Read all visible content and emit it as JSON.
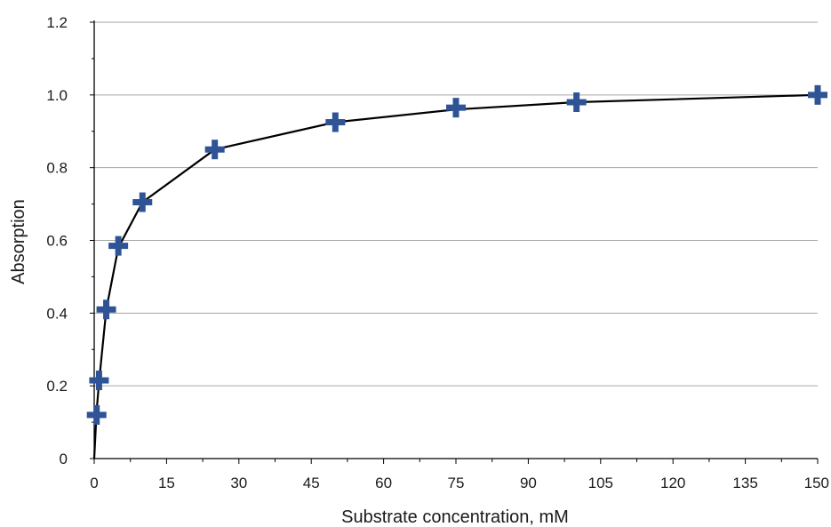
{
  "chart_data": {
    "type": "scatter",
    "title": "",
    "xlabel": "Substrate concentration, mM",
    "ylabel": "Absorption",
    "xlim": [
      0,
      150
    ],
    "ylim": [
      0,
      1.2
    ],
    "x_ticks": [
      0,
      15,
      30,
      45,
      60,
      75,
      90,
      105,
      120,
      135,
      150
    ],
    "x_tick_labels": [
      "0",
      "15",
      "30",
      "45",
      "60",
      "75",
      "90",
      "105",
      "120",
      "135",
      "150"
    ],
    "y_ticks": [
      0,
      0.2,
      0.4,
      0.6,
      0.8,
      1.0,
      1.2
    ],
    "y_tick_labels": [
      "0",
      "0.2",
      "0.4",
      "0.6",
      "0.8",
      "1.0",
      "1.2"
    ],
    "grid": "horizontal",
    "marker_color": "#2e5496",
    "line_color": "#000000",
    "grid_color": "#a6a6a6",
    "points": {
      "x": [
        0.5,
        1,
        2.5,
        5,
        10,
        25,
        50,
        75,
        100,
        150
      ],
      "y": [
        0.12,
        0.215,
        0.41,
        0.585,
        0.705,
        0.85,
        0.925,
        0.965,
        0.98,
        1.0
      ]
    },
    "fit_curve": {
      "x": [
        0,
        0.5,
        1,
        2.5,
        5,
        10,
        25,
        50,
        75,
        100,
        150
      ],
      "y": [
        0,
        0.13,
        0.21,
        0.41,
        0.58,
        0.705,
        0.85,
        0.925,
        0.96,
        0.98,
        1.0
      ]
    }
  }
}
